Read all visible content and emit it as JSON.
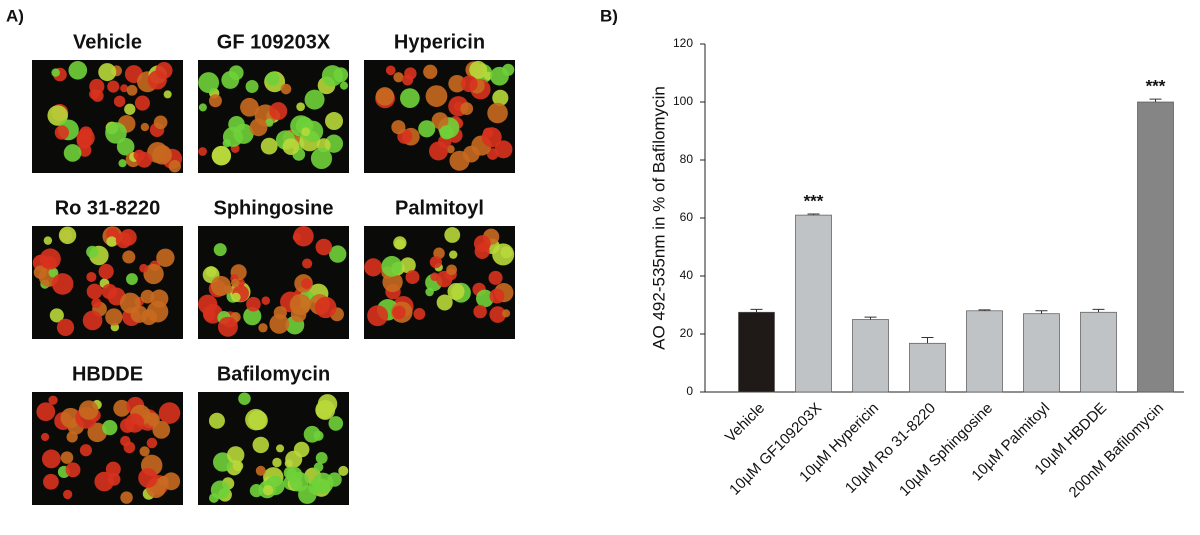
{
  "panel_a": {
    "label": "A)",
    "images": [
      "Vehicle",
      "GF 109203X",
      "Hypericin",
      "Ro 31-8220",
      "Sphingosine",
      "Palmitoyl",
      "HBDDE",
      "Bafilomycin"
    ]
  },
  "chart_data": {
    "type": "bar",
    "panel_label": "B)",
    "y_label": "AO 492-535nm in % of Bafilomycin",
    "categories": [
      "Vehicle",
      "10µM GF109203X",
      "10µM Hypericin",
      "10µM Ro 31-8220",
      "10µM Sphingosine",
      "10µM Palmitoyl",
      "10µM HBDDE",
      "200nM Bafilomycin"
    ],
    "values": [
      27.5,
      61,
      25,
      16.8,
      28,
      27,
      27.5,
      100
    ],
    "errors": [
      1,
      0.4,
      0.8,
      2,
      0.3,
      1,
      1,
      1
    ],
    "colors": [
      "#1f1a17",
      "#c0c3c6",
      "#c0c3c6",
      "#c0c3c6",
      "#c0c3c6",
      "#c0c3c6",
      "#c0c3c6",
      "#858585"
    ],
    "significance": [
      null,
      "***",
      null,
      null,
      null,
      null,
      null,
      "***"
    ],
    "ylim": [
      0,
      120
    ],
    "yticks": [
      0,
      20,
      40,
      60,
      80,
      100,
      120
    ]
  }
}
